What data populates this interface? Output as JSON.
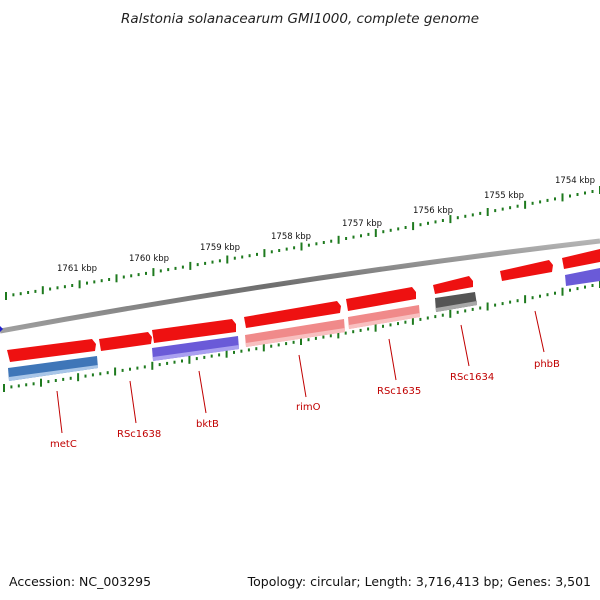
{
  "title": "Ralstonia solanacearum GMI1000, complete genome",
  "footer": {
    "accession": "Accession: NC_003295",
    "summary": "Topology: circular; Length: 3,716,413 bp; Genes: 3,501"
  },
  "colors": {
    "backbone": "#8a8a8a",
    "tick": "#1e7a1e",
    "label": "#c00000",
    "red": "#ee1111",
    "pink": "#f08a8a",
    "darkpink": "#c45a5a",
    "blue": "#3f76b8",
    "purple": "#6a5ad8",
    "gray": "#555555"
  },
  "scale_labels": [
    "1761 kbp",
    "1760 kbp",
    "1759 kbp",
    "1758 kbp",
    "1757 kbp",
    "1756 kbp",
    "1755 kbp",
    "1754 kbp"
  ],
  "genes": [
    {
      "label": "metC"
    },
    {
      "label": "RSc1638"
    },
    {
      "label": "bktB"
    },
    {
      "label": "rimO"
    },
    {
      "label": "RSc1635"
    },
    {
      "label": "RSc1634"
    },
    {
      "label": "phbB"
    }
  ]
}
